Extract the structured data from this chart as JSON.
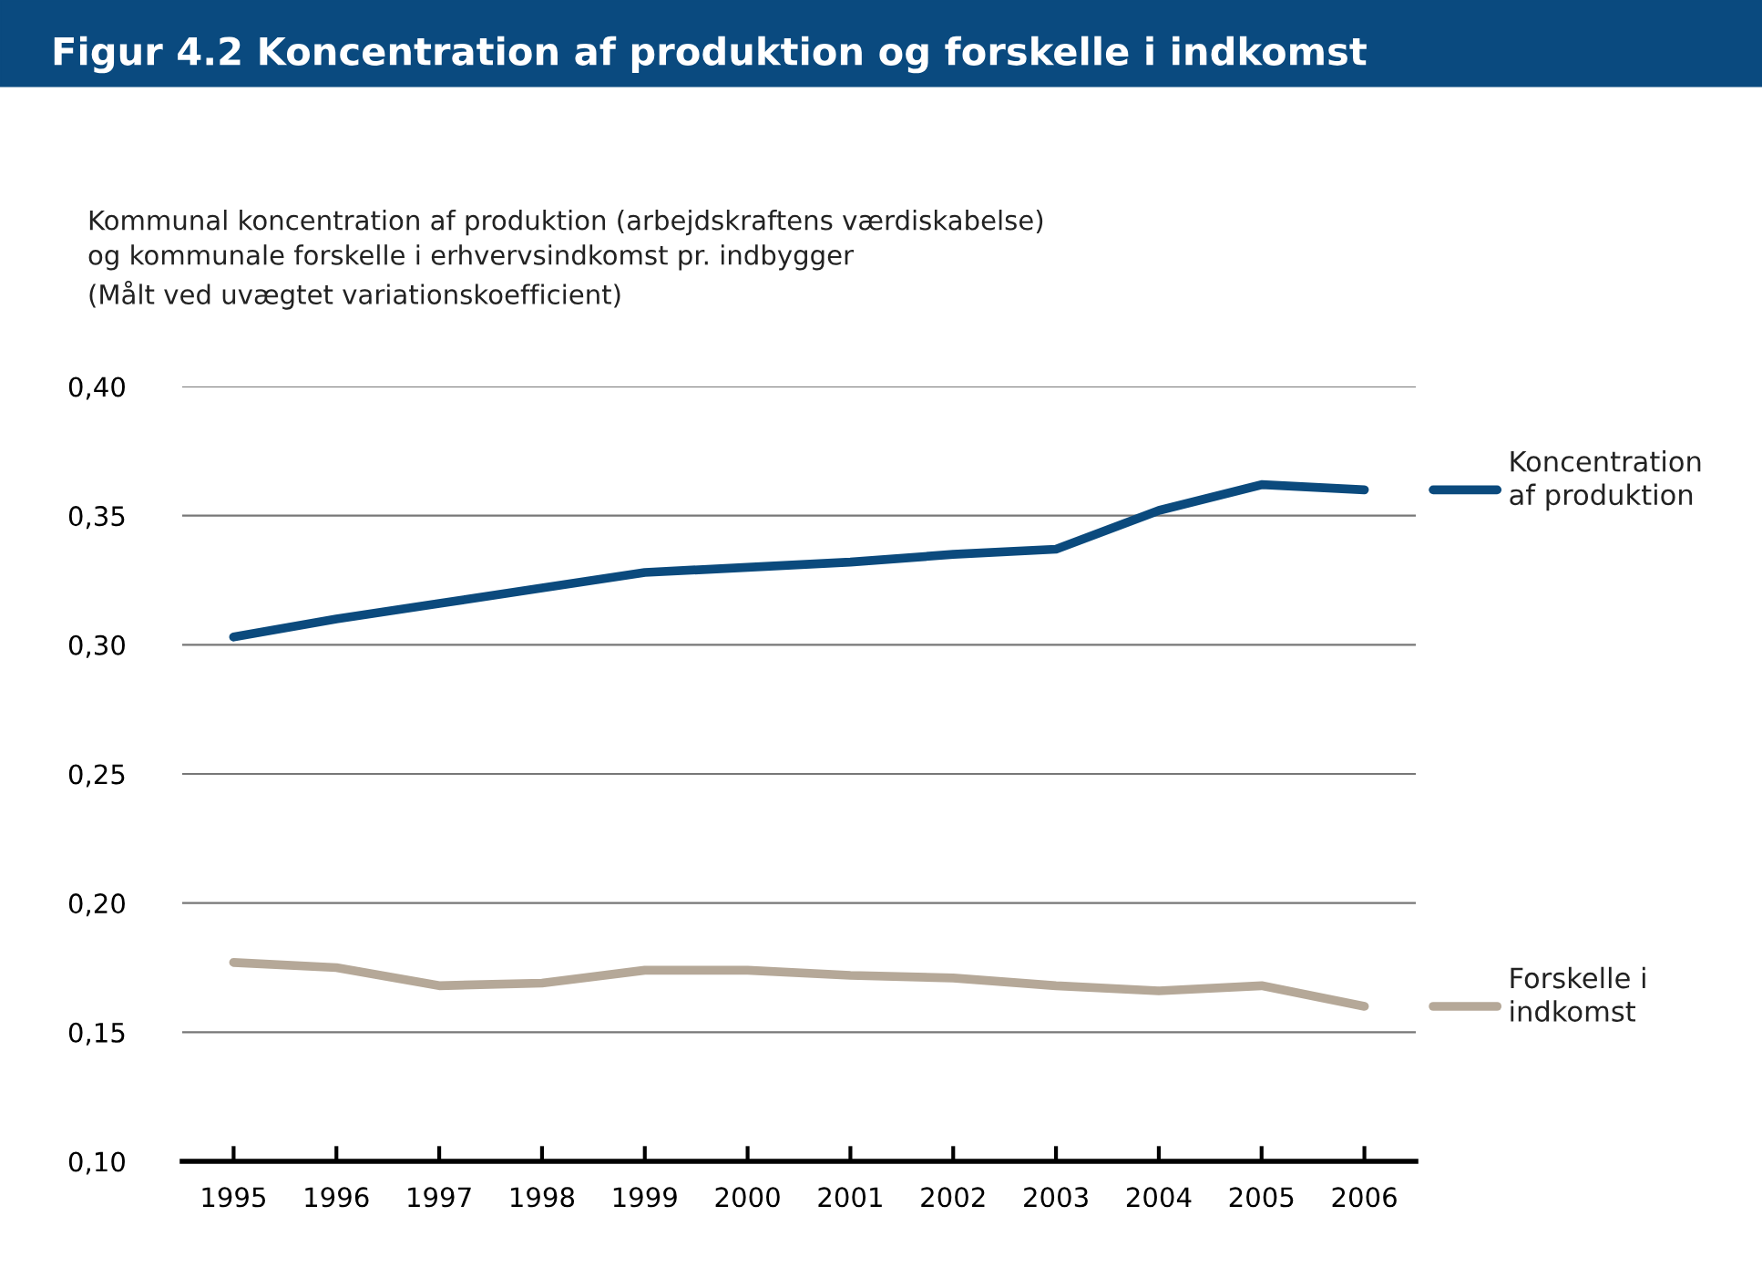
{
  "chart_data": {
    "type": "line",
    "title": "Figur 4.2 Koncentration af produktion og forskelle i indkomst",
    "subtitle": "Kommunal koncentration af produktion (arbejdskraftens værdiskabelse)\nog kommunale forskelle i erhvervsindkomst pr. indbygger\n(Målt ved uvægtet variationskoefficient)",
    "categories": [
      "1995",
      "1996",
      "1997",
      "1998",
      "1999",
      "2000",
      "2001",
      "2002",
      "2003",
      "2004",
      "2005",
      "2006"
    ],
    "series": [
      {
        "name": "Koncentration\naf produktion",
        "color": "#0b4a7d",
        "values": [
          0.303,
          0.31,
          0.316,
          0.322,
          0.328,
          0.33,
          0.332,
          0.335,
          0.337,
          0.352,
          0.362,
          0.36
        ]
      },
      {
        "name": "Forskelle i\nindkomst",
        "color": "#b5a898",
        "values": [
          0.177,
          0.175,
          0.168,
          0.169,
          0.174,
          0.174,
          0.172,
          0.171,
          0.168,
          0.166,
          0.168,
          0.16
        ]
      }
    ],
    "ylim": [
      0.1,
      0.4
    ],
    "yticks": [
      {
        "value": 0.1,
        "label": "0,10"
      },
      {
        "value": 0.15,
        "label": "0,15"
      },
      {
        "value": 0.2,
        "label": "0,20"
      },
      {
        "value": 0.25,
        "label": "0,25"
      },
      {
        "value": 0.3,
        "label": "0,30"
      },
      {
        "value": 0.35,
        "label": "0,35"
      },
      {
        "value": 0.4,
        "label": "0,40"
      }
    ],
    "grid": "y",
    "legend": "right",
    "marker": "none",
    "line_style": "solid"
  }
}
